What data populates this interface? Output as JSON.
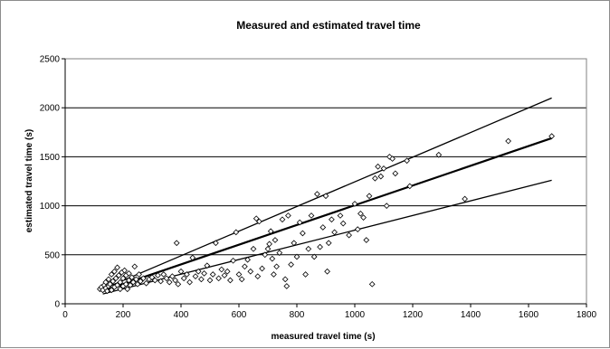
{
  "chart_data": {
    "type": "scatter",
    "title": "Measured and estimated travel time",
    "xlabel": "measured travel time (s)",
    "ylabel": "estimated travel time (s)",
    "xlim": [
      0,
      1800
    ],
    "ylim": [
      0,
      2500
    ],
    "xticks": [
      "0",
      "200",
      "400",
      "600",
      "800",
      "1000",
      "1200",
      "1400",
      "1600",
      "1800"
    ],
    "yticks": [
      "0",
      "500",
      "1000",
      "1500",
      "2000",
      "2500"
    ],
    "grid": "horizontal",
    "marker": "diamond-open",
    "series": [
      {
        "points": [
          [
            120,
            150
          ],
          [
            125,
            170
          ],
          [
            130,
            140
          ],
          [
            135,
            190
          ],
          [
            140,
            160
          ],
          [
            140,
            220
          ],
          [
            145,
            130
          ],
          [
            150,
            180
          ],
          [
            150,
            250
          ],
          [
            155,
            200
          ],
          [
            160,
            140
          ],
          [
            160,
            300
          ],
          [
            165,
            230
          ],
          [
            170,
            170
          ],
          [
            170,
            330
          ],
          [
            175,
            260
          ],
          [
            180,
            190
          ],
          [
            180,
            370
          ],
          [
            185,
            290
          ],
          [
            190,
            150
          ],
          [
            190,
            220
          ],
          [
            195,
            320
          ],
          [
            200,
            180
          ],
          [
            200,
            260
          ],
          [
            205,
            340
          ],
          [
            210,
            200
          ],
          [
            210,
            290
          ],
          [
            215,
            150
          ],
          [
            220,
            240
          ],
          [
            220,
            310
          ],
          [
            225,
            190
          ],
          [
            230,
            270
          ],
          [
            235,
            220
          ],
          [
            240,
            380
          ],
          [
            245,
            250
          ],
          [
            250,
            200
          ],
          [
            255,
            300
          ],
          [
            260,
            230
          ],
          [
            270,
            260
          ],
          [
            280,
            210
          ],
          [
            290,
            250
          ],
          [
            300,
            270
          ],
          [
            310,
            240
          ],
          [
            320,
            290
          ],
          [
            330,
            230
          ],
          [
            340,
            300
          ],
          [
            350,
            260
          ],
          [
            360,
            220
          ],
          [
            370,
            280
          ],
          [
            380,
            240
          ],
          [
            385,
            620
          ],
          [
            390,
            200
          ],
          [
            400,
            330
          ],
          [
            410,
            260
          ],
          [
            420,
            300
          ],
          [
            430,
            220
          ],
          [
            440,
            470
          ],
          [
            450,
            280
          ],
          [
            460,
            330
          ],
          [
            470,
            250
          ],
          [
            480,
            310
          ],
          [
            490,
            390
          ],
          [
            500,
            240
          ],
          [
            510,
            300
          ],
          [
            520,
            620
          ],
          [
            530,
            260
          ],
          [
            540,
            350
          ],
          [
            550,
            290
          ],
          [
            560,
            330
          ],
          [
            570,
            240
          ],
          [
            580,
            440
          ],
          [
            590,
            730
          ],
          [
            600,
            300
          ],
          [
            610,
            250
          ],
          [
            620,
            380
          ],
          [
            630,
            450
          ],
          [
            640,
            330
          ],
          [
            650,
            560
          ],
          [
            660,
            870
          ],
          [
            665,
            280
          ],
          [
            670,
            840
          ],
          [
            680,
            360
          ],
          [
            690,
            500
          ],
          [
            700,
            560
          ],
          [
            705,
            610
          ],
          [
            710,
            740
          ],
          [
            715,
            460
          ],
          [
            720,
            300
          ],
          [
            725,
            650
          ],
          [
            730,
            380
          ],
          [
            740,
            520
          ],
          [
            750,
            860
          ],
          [
            760,
            250
          ],
          [
            765,
            180
          ],
          [
            770,
            900
          ],
          [
            780,
            400
          ],
          [
            790,
            620
          ],
          [
            800,
            480
          ],
          [
            810,
            830
          ],
          [
            820,
            720
          ],
          [
            830,
            300
          ],
          [
            840,
            560
          ],
          [
            850,
            900
          ],
          [
            860,
            480
          ],
          [
            870,
            1120
          ],
          [
            880,
            580
          ],
          [
            890,
            780
          ],
          [
            900,
            1100
          ],
          [
            905,
            330
          ],
          [
            910,
            620
          ],
          [
            920,
            860
          ],
          [
            930,
            730
          ],
          [
            950,
            900
          ],
          [
            960,
            820
          ],
          [
            980,
            700
          ],
          [
            1000,
            1020
          ],
          [
            1010,
            760
          ],
          [
            1020,
            920
          ],
          [
            1030,
            880
          ],
          [
            1040,
            650
          ],
          [
            1050,
            1100
          ],
          [
            1060,
            200
          ],
          [
            1070,
            1280
          ],
          [
            1080,
            1400
          ],
          [
            1090,
            1300
          ],
          [
            1100,
            1380
          ],
          [
            1110,
            1000
          ],
          [
            1120,
            1500
          ],
          [
            1130,
            1480
          ],
          [
            1140,
            1330
          ],
          [
            1180,
            1460
          ],
          [
            1190,
            1200
          ],
          [
            1290,
            1520
          ],
          [
            1380,
            1070
          ],
          [
            1530,
            1660
          ],
          [
            1680,
            1710
          ]
        ]
      }
    ],
    "lines": [
      {
        "points": [
          [
            130,
            130
          ],
          [
            1680,
            1690
          ]
        ]
      },
      {
        "points": [
          [
            130,
            150
          ],
          [
            1680,
            2100
          ]
        ]
      },
      {
        "points": [
          [
            130,
            100
          ],
          [
            1680,
            1260
          ]
        ]
      }
    ]
  }
}
